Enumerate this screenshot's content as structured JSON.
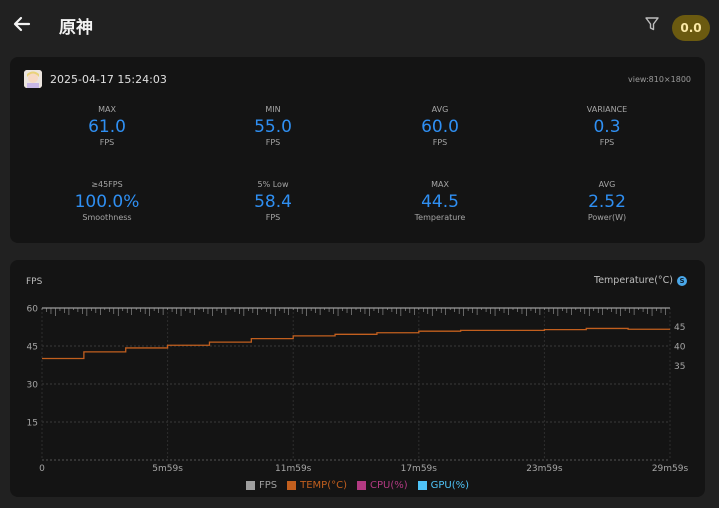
{
  "header": {
    "title": "原神",
    "score": "0.0"
  },
  "session": {
    "datetime": "2025-04-17 15:24:03",
    "view": "view:810×1800"
  },
  "stats": [
    {
      "label": "MAX",
      "value": "61.0",
      "unit": "FPS"
    },
    {
      "label": "MIN",
      "value": "55.0",
      "unit": "FPS"
    },
    {
      "label": "AVG",
      "value": "60.0",
      "unit": "FPS"
    },
    {
      "label": "VARIANCE",
      "value": "0.3",
      "unit": "FPS"
    },
    {
      "label": "≥45FPS",
      "value": "100.0%",
      "unit": "Smoothness"
    },
    {
      "label": "5% Low",
      "value": "58.4",
      "unit": "FPS"
    },
    {
      "label": "MAX",
      "value": "44.5",
      "unit": "Temperature"
    },
    {
      "label": "AVG",
      "value": "2.52",
      "unit": "Power(W)"
    }
  ],
  "chart_labels": {
    "left_axis": "FPS",
    "right_axis": "Temperature(°C)"
  },
  "chart_data": {
    "type": "line",
    "x_ticks": [
      "0",
      "5m59s",
      "11m59s",
      "17m59s",
      "23m59s",
      "29m59s"
    ],
    "y_ticks_left": [
      15,
      30,
      45,
      60
    ],
    "y_ticks_right": [
      35,
      40,
      45
    ],
    "ylim_left": [
      0,
      60
    ],
    "ylim_right_visible": [
      35,
      45
    ],
    "grid": true,
    "legend_position": "bottom",
    "x_minutes": [
      0,
      2,
      4,
      6,
      8,
      10,
      12,
      14,
      16,
      18,
      20,
      22,
      24,
      26,
      28,
      30
    ],
    "series": [
      {
        "name": "FPS",
        "axis": "left",
        "color": "#9e9e9e",
        "values": [
          60,
          60,
          60,
          60,
          60,
          60,
          60,
          60,
          60,
          60,
          60,
          60,
          60,
          60,
          60,
          60
        ]
      },
      {
        "name": "TEMP(°C)",
        "axis": "right",
        "color": "#c25f1e",
        "values": [
          36.8,
          38.5,
          39.5,
          40.2,
          41,
          41.9,
          42.6,
          43,
          43.4,
          43.8,
          44,
          44,
          44.2,
          44.5,
          44.3,
          44.3
        ]
      }
    ],
    "legend": [
      {
        "name": "FPS",
        "color": "#9e9e9e"
      },
      {
        "name": "TEMP(°C)",
        "color": "#c25f1e"
      },
      {
        "name": "CPU(%)",
        "color": "#b23a82"
      },
      {
        "name": "GPU(%)",
        "color": "#4fc3f7"
      }
    ]
  }
}
